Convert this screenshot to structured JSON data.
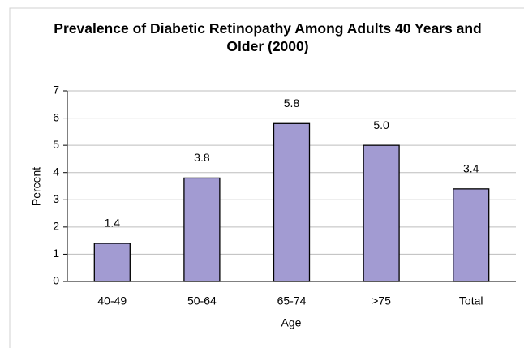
{
  "chart_data": {
    "type": "bar",
    "title": "Prevalence of Diabetic Retinopathy Among Adults 40 Years and Older (2000)",
    "x_label": "Age",
    "y_label": "Percent",
    "categories": [
      "40-49",
      "50-64",
      "65-74",
      ">75",
      "Total"
    ],
    "values": [
      1.4,
      3.8,
      5.8,
      5.0,
      3.4
    ],
    "value_labels": [
      "1.4",
      "3.8",
      "5.8",
      "5.0",
      "3.4"
    ],
    "color": "#a29bd2",
    "ylim": [
      0,
      7
    ],
    "yticks": [
      0,
      1,
      2,
      3,
      4,
      5,
      6,
      7
    ],
    "grid": true
  }
}
